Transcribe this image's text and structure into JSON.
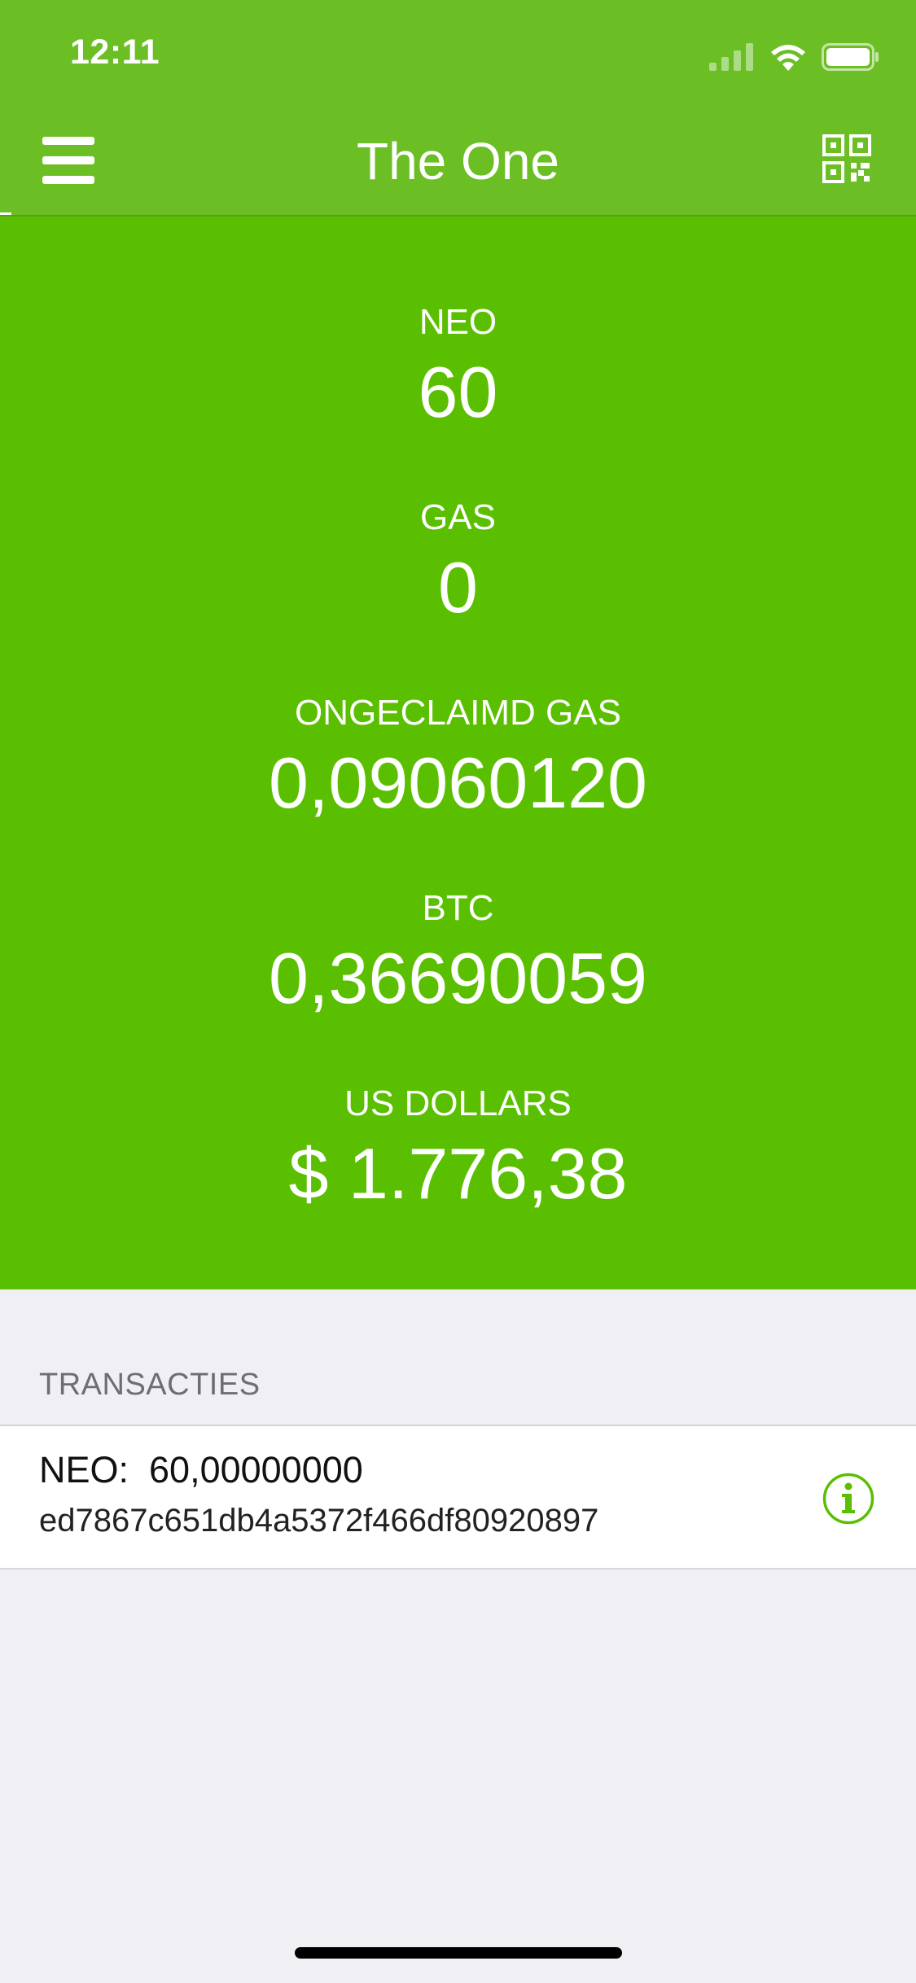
{
  "status_bar": {
    "time": "12:11",
    "icons": [
      "cellular-signal-icon",
      "wifi-icon",
      "battery-icon"
    ]
  },
  "nav": {
    "title": "The One",
    "left_icon": "menu-icon",
    "right_icon": "qr-code-icon"
  },
  "balances": [
    {
      "label": "NEO",
      "value": "60"
    },
    {
      "label": "GAS",
      "value": "0"
    },
    {
      "label": "ONGECLAIMD GAS",
      "value": "0,09060120"
    },
    {
      "label": "BTC",
      "value": "0,36690059"
    },
    {
      "label": "US DOLLARS",
      "value": "$ 1.776,38"
    }
  ],
  "transactions": {
    "header": "TRANSACTIES",
    "items": [
      {
        "amount": "NEO:  60,00000000",
        "hash": "ed7867c651db4a5372f466df80920897",
        "icon": "info-icon"
      }
    ]
  },
  "colors": {
    "nav_background": "#6bbf24",
    "panel_background": "#5abf00",
    "accent": "#5abf00",
    "page_background": "#efeff4"
  }
}
